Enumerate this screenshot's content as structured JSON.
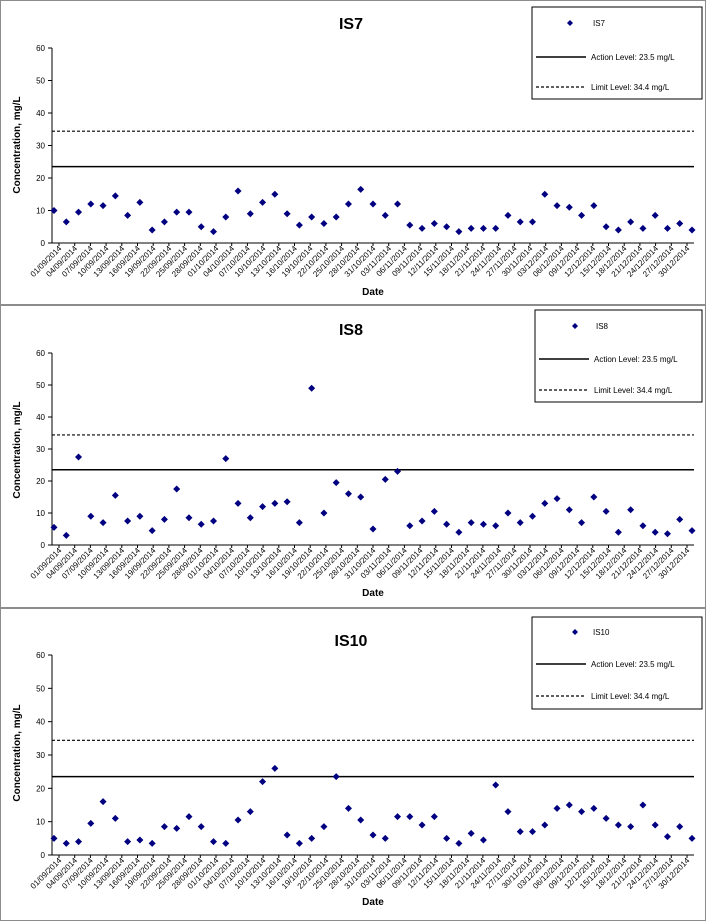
{
  "chart_data": [
    {
      "type": "scatter",
      "title": "IS7",
      "xlabel": "Date",
      "ylabel": "Concentration, mg/L",
      "ylim": [
        0,
        60
      ],
      "yticks": [
        "0",
        "10",
        "20",
        "30",
        "40",
        "50",
        "60"
      ],
      "xtick_labels": [
        "01/09/2014",
        "04/09/2014",
        "07/09/2014",
        "10/09/2014",
        "13/09/2014",
        "16/09/2014",
        "19/09/2014",
        "22/09/2014",
        "25/09/2014",
        "28/09/2014",
        "01/10/2014",
        "04/10/2014",
        "07/10/2014",
        "10/10/2014",
        "13/10/2014",
        "16/10/2014",
        "19/10/2014",
        "22/10/2014",
        "25/10/2014",
        "28/10/2014",
        "31/10/2014",
        "03/11/2014",
        "06/11/2014",
        "09/11/2014",
        "12/11/2014",
        "15/11/2014",
        "18/11/2014",
        "21/11/2014",
        "24/11/2014",
        "27/11/2014",
        "30/11/2014",
        "03/12/2014",
        "06/12/2014",
        "09/12/2014",
        "12/12/2014",
        "15/12/2014",
        "18/12/2014",
        "21/12/2014",
        "24/12/2014",
        "27/12/2014",
        "30/12/2014"
      ],
      "grid": false,
      "legend_position": "top-right",
      "series": [
        {
          "name": "IS7",
          "color": "#000080",
          "marker": "diamond",
          "values": [
            10,
            6.5,
            9.5,
            12,
            11.5,
            14.5,
            8.5,
            12.5,
            4,
            6.5,
            9.5,
            9.5,
            5,
            3.5,
            8,
            16,
            9,
            12.5,
            15,
            9,
            5.5,
            8,
            6,
            8,
            12,
            16.5,
            12,
            8.5,
            12,
            5.5,
            4.5,
            6,
            5,
            3.5,
            4.5,
            4.5,
            4.5,
            8.5,
            6.5,
            6.5,
            15,
            11.5,
            11,
            8.5,
            11.5,
            5,
            4,
            6.5,
            4.5,
            8.5,
            4.5,
            6,
            4
          ]
        }
      ],
      "reference_lines": [
        {
          "label": "Action Level: 23.5 mg/L",
          "value": 23.5,
          "style": "solid"
        },
        {
          "label": "Limit Level: 34.4 mg/L",
          "value": 34.4,
          "style": "dashed"
        }
      ]
    },
    {
      "type": "scatter",
      "title": "IS8",
      "xlabel": "Date",
      "ylabel": "Concentration, mg/L",
      "ylim": [
        0,
        60
      ],
      "yticks": [
        "0",
        "10",
        "20",
        "30",
        "40",
        "50",
        "60"
      ],
      "xtick_labels": [
        "01/09/2014",
        "04/09/2014",
        "07/09/2014",
        "10/09/2014",
        "13/09/2014",
        "16/09/2014",
        "19/09/2014",
        "22/09/2014",
        "25/09/2014",
        "28/09/2014",
        "01/10/2014",
        "04/10/2014",
        "07/10/2014",
        "10/10/2014",
        "13/10/2014",
        "16/10/2014",
        "19/10/2014",
        "22/10/2014",
        "25/10/2014",
        "28/10/2014",
        "31/10/2014",
        "03/11/2014",
        "06/11/2014",
        "09/11/2014",
        "12/11/2014",
        "15/11/2014",
        "18/11/2014",
        "21/11/2014",
        "24/11/2014",
        "27/11/2014",
        "30/11/2014",
        "03/12/2014",
        "06/12/2014",
        "09/12/2014",
        "12/12/2014",
        "15/12/2014",
        "18/12/2014",
        "21/12/2014",
        "24/12/2014",
        "27/12/2014",
        "30/12/2014"
      ],
      "grid": false,
      "legend_position": "top-right",
      "series": [
        {
          "name": "IS8",
          "color": "#000080",
          "marker": "diamond",
          "values": [
            5.5,
            3,
            27.5,
            9,
            7,
            15.5,
            7.5,
            9,
            4.5,
            8,
            17.5,
            8.5,
            6.5,
            7.5,
            27,
            13,
            8.5,
            12,
            13,
            13.5,
            7,
            49,
            10,
            19.5,
            16,
            15,
            5,
            20.5,
            23,
            6,
            7.5,
            10.5,
            6.5,
            4,
            7,
            6.5,
            6,
            10,
            7,
            9,
            13,
            14.5,
            11,
            7,
            15,
            10.5,
            4,
            11,
            6,
            4,
            3.5,
            8,
            4.5
          ]
        }
      ],
      "reference_lines": [
        {
          "label": "Action Level: 23.5 mg/L",
          "value": 23.5,
          "style": "solid"
        },
        {
          "label": "Limit Level: 34.4 mg/L",
          "value": 34.4,
          "style": "dashed"
        }
      ]
    },
    {
      "type": "scatter",
      "title": "IS10",
      "xlabel": "Date",
      "ylabel": "Concentration, mg/L",
      "ylim": [
        0,
        60
      ],
      "yticks": [
        "0",
        "10",
        "20",
        "30",
        "40",
        "50",
        "60"
      ],
      "xtick_labels": [
        "01/09/2014",
        "04/09/2014",
        "07/09/2014",
        "10/09/2014",
        "13/09/2014",
        "16/09/2014",
        "19/09/2014",
        "22/09/2014",
        "25/09/2014",
        "28/09/2014",
        "01/10/2014",
        "04/10/2014",
        "07/10/2014",
        "10/10/2014",
        "13/10/2014",
        "16/10/2014",
        "19/10/2014",
        "22/10/2014",
        "25/10/2014",
        "28/10/2014",
        "31/10/2014",
        "03/11/2014",
        "06/11/2014",
        "09/11/2014",
        "12/11/2014",
        "15/11/2014",
        "18/11/2014",
        "21/11/2014",
        "24/11/2014",
        "27/11/2014",
        "30/11/2014",
        "03/12/2014",
        "06/12/2014",
        "09/12/2014",
        "12/12/2014",
        "15/12/2014",
        "18/12/2014",
        "21/12/2014",
        "24/12/2014",
        "27/12/2014",
        "30/12/2014"
      ],
      "grid": false,
      "legend_position": "top-right",
      "series": [
        {
          "name": "IS10",
          "color": "#000080",
          "marker": "diamond",
          "values": [
            5,
            3.5,
            4,
            9.5,
            16,
            11,
            4,
            4.5,
            3.5,
            8.5,
            8,
            11.5,
            8.5,
            4,
            3.5,
            10.5,
            13,
            22,
            26,
            6,
            3.5,
            5,
            8.5,
            23.5,
            14,
            10.5,
            6,
            5,
            11.5,
            11.5,
            9,
            11.5,
            5,
            3.5,
            6.5,
            4.5,
            21,
            13,
            7,
            7,
            9,
            14,
            15,
            13,
            14,
            11,
            9,
            8.5,
            15,
            9,
            5.5,
            8.5,
            5
          ]
        }
      ],
      "reference_lines": [
        {
          "label": "Action Level: 23.5 mg/L",
          "value": 23.5,
          "style": "solid"
        },
        {
          "label": "Limit Level: 34.4 mg/L",
          "value": 34.4,
          "style": "dashed"
        }
      ]
    }
  ]
}
